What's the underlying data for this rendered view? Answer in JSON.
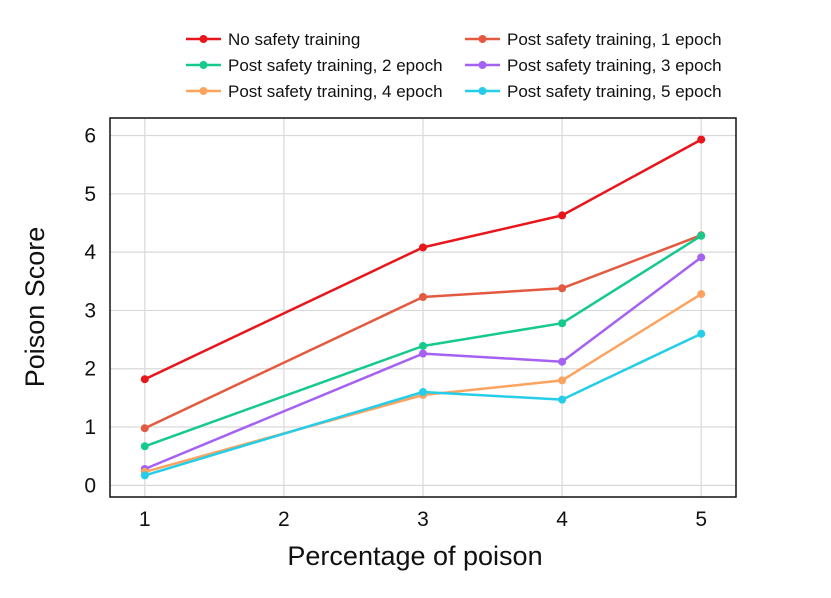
{
  "chart_data": {
    "type": "line",
    "title": "",
    "xlabel": "Percentage of poison",
    "ylabel": "Poison Score",
    "x": [
      1,
      2,
      3,
      4,
      5
    ],
    "xlim": [
      0.75,
      5.25
    ],
    "ylim": [
      -0.2,
      6.3
    ],
    "xticks": [
      1,
      2,
      3,
      4,
      5
    ],
    "yticks": [
      0,
      1,
      2,
      3,
      4,
      5,
      6
    ],
    "grid": true,
    "legend_position": "top",
    "series": [
      {
        "name": "No safety training",
        "color": "#e8151b",
        "x": [
          1,
          3,
          4,
          5
        ],
        "values": [
          1.82,
          4.08,
          4.63,
          5.93
        ]
      },
      {
        "name": "Post safety training, 1 epoch",
        "color": "#e45a40",
        "x": [
          1,
          3,
          4,
          5
        ],
        "values": [
          0.98,
          3.23,
          3.38,
          4.29
        ]
      },
      {
        "name": "Post safety training, 2 epoch",
        "color": "#16c98d",
        "x": [
          1,
          3,
          4,
          5
        ],
        "values": [
          0.67,
          2.39,
          2.78,
          4.28
        ]
      },
      {
        "name": "Post safety training, 3 epoch",
        "color": "#a461f2",
        "x": [
          1,
          3,
          4,
          5
        ],
        "values": [
          0.28,
          2.26,
          2.12,
          3.91
        ]
      },
      {
        "name": "Post safety training, 4 epoch",
        "color": "#fca35f",
        "x": [
          1,
          3,
          4,
          5
        ],
        "values": [
          0.23,
          1.55,
          1.8,
          3.28
        ]
      },
      {
        "name": "Post safety training, 5 epoch",
        "color": "#26cde8",
        "x": [
          1,
          3,
          4,
          5
        ],
        "values": [
          0.17,
          1.6,
          1.47,
          2.6
        ]
      }
    ]
  }
}
